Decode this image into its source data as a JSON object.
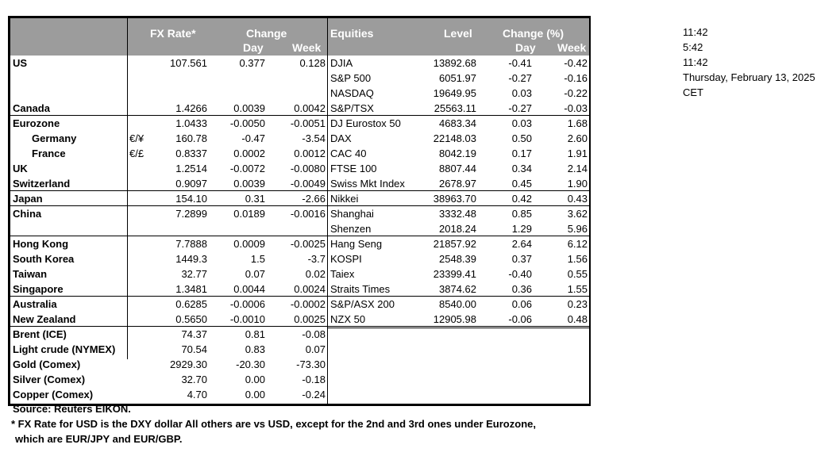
{
  "header": {
    "fx_rate": "FX Rate*",
    "change": "Change",
    "day": "Day",
    "week": "Week",
    "equities": "Equities",
    "level": "Level",
    "change_pct": "Change (%)",
    "eq_day": "Day",
    "eq_week": "Week"
  },
  "rows": [
    {
      "label": "US",
      "sym": "",
      "fx": "107.561",
      "day": "0.377",
      "week": "0.128",
      "eq": "DJIA",
      "level": "13892.68",
      "eday": "-0.41",
      "eweek": "-0.42",
      "sep": false
    },
    {
      "label": "",
      "sym": "",
      "fx": "",
      "day": "",
      "week": "",
      "eq": "S&P 500",
      "level": "6051.97",
      "eday": "-0.27",
      "eweek": "-0.16",
      "sep": false
    },
    {
      "label": "",
      "sym": "",
      "fx": "",
      "day": "",
      "week": "",
      "eq": "NASDAQ",
      "level": "19649.95",
      "eday": "0.03",
      "eweek": "-0.22",
      "sep": false
    },
    {
      "label": "Canada",
      "sym": "",
      "fx": "1.4266",
      "day": "0.0039",
      "week": "0.0042",
      "eq": "S&P/TSX",
      "level": "25563.11",
      "eday": "-0.27",
      "eweek": "-0.03",
      "sep": false
    },
    {
      "label": "Eurozone",
      "sym": "",
      "fx": "1.0433",
      "day": "-0.0050",
      "week": "-0.0051",
      "eq": "DJ Eurostox 50",
      "level": "4683.34",
      "eday": "0.03",
      "eweek": "1.68",
      "sep": true
    },
    {
      "label": "Germany",
      "indent": true,
      "sym": "€/¥",
      "fx": "160.78",
      "day": "-0.47",
      "week": "-3.54",
      "eq": "DAX",
      "level": "22148.03",
      "eday": "0.50",
      "eweek": "2.60",
      "sep": false
    },
    {
      "label": "France",
      "indent": true,
      "sym": "€/£",
      "fx": "0.8337",
      "day": "0.0002",
      "week": "0.0012",
      "eq": "CAC 40",
      "level": "8042.19",
      "eday": "0.17",
      "eweek": "1.91",
      "sep": false
    },
    {
      "label": "UK",
      "sym": "",
      "fx": "1.2514",
      "day": "-0.0072",
      "week": "-0.0080",
      "eq": "FTSE 100",
      "level": "8807.44",
      "eday": "0.34",
      "eweek": "2.14",
      "sep": false
    },
    {
      "label": "Switzerland",
      "sym": "",
      "fx": "0.9097",
      "day": "0.0039",
      "week": "-0.0049",
      "eq": "Swiss Mkt Index",
      "level": "2678.97",
      "eday": "0.45",
      "eweek": "1.90",
      "sep": false
    },
    {
      "label": "Japan",
      "sym": "",
      "fx": "154.10",
      "day": "0.31",
      "week": "-2.66",
      "eq": "Nikkei",
      "level": "38963.70",
      "eday": "0.42",
      "eweek": "0.43",
      "sep": true
    },
    {
      "label": "China",
      "sym": "",
      "fx": "7.2899",
      "day": "0.0189",
      "week": "-0.0016",
      "eq": "Shanghai",
      "level": "3332.48",
      "eday": "0.85",
      "eweek": "3.62",
      "sep": true
    },
    {
      "label": "",
      "sym": "",
      "fx": "",
      "day": "",
      "week": "",
      "eq": "Shenzen",
      "level": "2018.24",
      "eday": "1.29",
      "eweek": "5.96",
      "sep": false
    },
    {
      "label": "Hong Kong",
      "sym": "",
      "fx": "7.7888",
      "day": "0.0009",
      "week": "-0.0025",
      "eq": "Hang Seng",
      "level": "21857.92",
      "eday": "2.64",
      "eweek": "6.12",
      "sep": true
    },
    {
      "label": "South Korea",
      "sym": "",
      "fx": "1449.3",
      "day": "1.5",
      "week": "-3.7",
      "eq": "KOSPI",
      "level": "2548.39",
      "eday": "0.37",
      "eweek": "1.56",
      "sep": false
    },
    {
      "label": "Taiwan",
      "sym": "",
      "fx": "32.77",
      "day": "0.07",
      "week": "0.02",
      "eq": "Taiex",
      "level": "23399.41",
      "eday": "-0.40",
      "eweek": "0.55",
      "sep": false
    },
    {
      "label": "Singapore",
      "sym": "",
      "fx": "1.3481",
      "day": "0.0044",
      "week": "0.0024",
      "eq": "Straits Times",
      "level": "3874.62",
      "eday": "0.36",
      "eweek": "1.55",
      "sep": false
    },
    {
      "label": "Australia",
      "sym": "",
      "fx": "0.6285",
      "day": "-0.0006",
      "week": "-0.0002",
      "eq": "S&P/ASX  200",
      "level": "8540.00",
      "eday": "0.06",
      "eweek": "0.23",
      "sep": true
    },
    {
      "label": "New Zealand",
      "sym": "",
      "fx": "0.5650",
      "day": "-0.0010",
      "week": "0.0025",
      "eq": "NZX 50",
      "level": "12905.98",
      "eday": "-0.06",
      "eweek": "0.48",
      "sep": false
    },
    {
      "label": "Brent (ICE)",
      "sym": "",
      "fx": "74.37",
      "day": "0.81",
      "week": "-0.08",
      "eq": "",
      "level": "",
      "eday": "",
      "eweek": "",
      "sep": true
    },
    {
      "label": "Light crude (NYMEX)",
      "sym": "",
      "fx": "70.54",
      "day": "0.83",
      "week": "0.07",
      "eq": "",
      "level": "",
      "eday": "",
      "eweek": "",
      "sep": false
    },
    {
      "label": "Gold (Comex)",
      "sym": "",
      "fx": "2929.30",
      "day": "-20.30",
      "week": "-73.30",
      "eq": "",
      "level": "",
      "eday": "",
      "eweek": "",
      "sep": false
    },
    {
      "label": "Silver (Comex)",
      "sym": "",
      "fx": "32.70",
      "day": "0.00",
      "week": "-0.18",
      "eq": "",
      "level": "",
      "eday": "",
      "eweek": "",
      "sep": false
    },
    {
      "label": "Copper (Comex)",
      "sym": "",
      "fx": "4.70",
      "day": "0.00",
      "week": "-0.24",
      "eq": "",
      "level": "",
      "eday": "",
      "eweek": "",
      "sep": false
    }
  ],
  "side": [
    "11:42",
    "5:42",
    "11:42",
    "Thursday, February 13, 2025",
    "CET"
  ],
  "footer": {
    "source": "Source:  Reuters EIKON.",
    "note1": "* FX Rate for USD is the DXY dollar  All others are vs USD, except for the 2nd and 3rd ones under Eurozone,",
    "note2": "which are EUR/JPY and EUR/GBP."
  }
}
